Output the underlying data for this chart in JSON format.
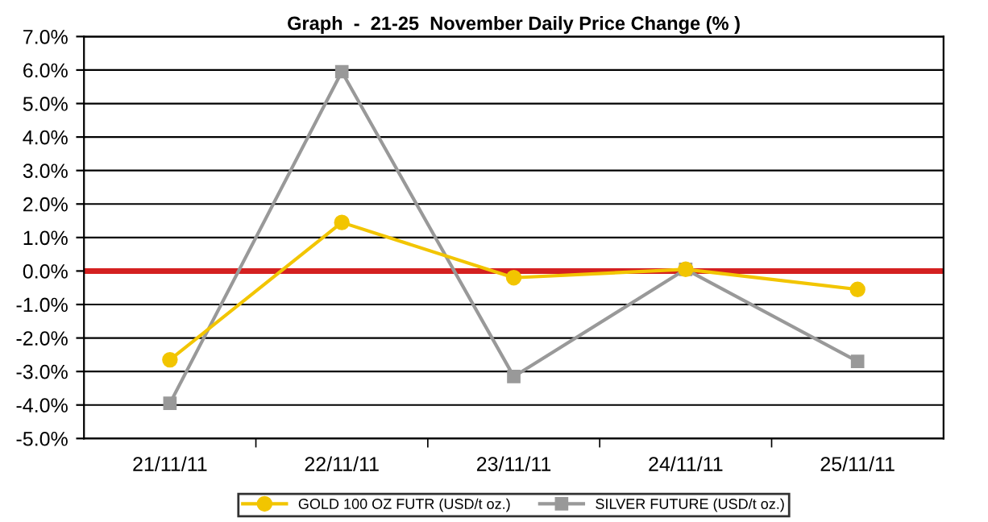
{
  "chart_data": {
    "type": "line",
    "title": "Graph  -  21-25  November Daily Price Change (% )",
    "categories": [
      "21/11/11",
      "22/11/11",
      "23/11/11",
      "24/11/11",
      "25/11/11"
    ],
    "series": [
      {
        "name": "GOLD 100 OZ FUTR (USD/t oz.)",
        "color": "#f2c500",
        "values": [
          -2.65,
          1.45,
          -0.2,
          0.05,
          -0.55
        ],
        "marker": "circle"
      },
      {
        "name": "SILVER FUTURE (USD/t oz.)",
        "color": "#999999",
        "values": [
          -3.95,
          5.95,
          -3.15,
          0.05,
          -2.7
        ],
        "marker": "square"
      }
    ],
    "ylim": [
      -5,
      7
    ],
    "yticks": [
      {
        "value": -5,
        "label": "-5.0%"
      },
      {
        "value": -4,
        "label": "-4.0%"
      },
      {
        "value": -3,
        "label": "-3.0%"
      },
      {
        "value": -2,
        "label": "-2.0%"
      },
      {
        "value": -1,
        "label": "-1.0%"
      },
      {
        "value": 0,
        "label": "0.0%"
      },
      {
        "value": 1,
        "label": "1.0%"
      },
      {
        "value": 2,
        "label": "2.0%"
      },
      {
        "value": 3,
        "label": "3.0%"
      },
      {
        "value": 4,
        "label": "4.0%"
      },
      {
        "value": 5,
        "label": "5.0%"
      },
      {
        "value": 6,
        "label": "6.0%"
      },
      {
        "value": 7,
        "label": "7.0%"
      }
    ],
    "ref_lines": [
      {
        "axis": "y",
        "value": 0,
        "color": "#d42020"
      }
    ],
    "grid": "y",
    "legend": "bottom"
  }
}
